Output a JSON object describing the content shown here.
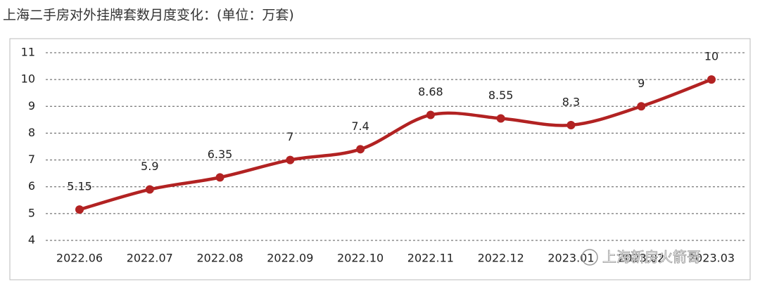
{
  "chart_data": {
    "type": "line",
    "title": "上海二手房对外挂牌套数月度变化：(单位：万套)",
    "categories": [
      "2022.06",
      "2022.07",
      "2022.08",
      "2022.09",
      "2022.10",
      "2022.11",
      "2022.12",
      "2023.01",
      "2023.02",
      "2023.03"
    ],
    "values": [
      5.15,
      5.9,
      6.35,
      7,
      7.4,
      8.68,
      8.55,
      8.3,
      9,
      10
    ],
    "color": "#b22222",
    "ylim": [
      4,
      11
    ],
    "yticks": [
      4,
      5,
      6,
      7,
      8,
      9,
      10,
      11
    ],
    "grid": true,
    "watermark": "上海新房火箭哥"
  }
}
